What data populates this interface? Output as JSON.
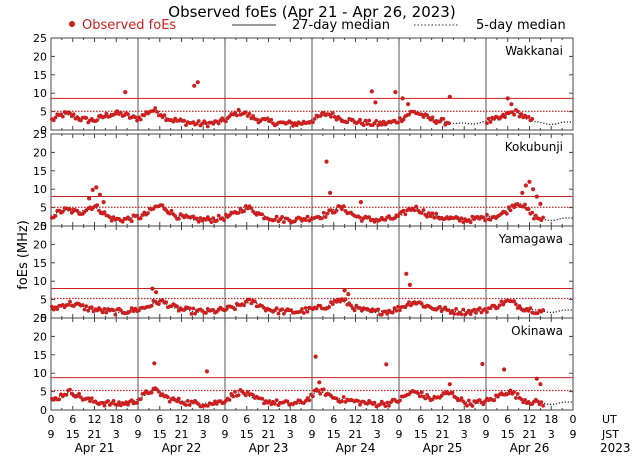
{
  "chart_data": {
    "type": "scatter",
    "title": "Observed foEs (Apr 21 - Apr 26, 2023)",
    "ylabel": "foEs (MHz)",
    "legend": [
      {
        "name": "Observed foEs",
        "color": "#cc1f1f",
        "style": "dot"
      },
      {
        "name": "27-day median",
        "color": "#333333",
        "style": "solid"
      },
      {
        "name": "5-day median",
        "color": "#333333",
        "style": "dotted"
      }
    ],
    "ylim": [
      0,
      25
    ],
    "yticks": [
      0,
      5,
      10,
      15,
      20,
      25
    ],
    "x_range_hours": [
      0,
      144
    ],
    "x_ticks_hours": [
      0,
      6,
      12,
      18,
      24,
      30,
      36,
      42,
      48,
      54,
      60,
      66,
      72,
      78,
      84,
      90,
      96,
      102,
      108,
      114,
      120,
      126,
      132,
      138,
      144
    ],
    "ut_labels": [
      "0",
      "6",
      "12",
      "18",
      "0",
      "6",
      "12",
      "18",
      "0",
      "6",
      "12",
      "18",
      "0",
      "6",
      "12",
      "18",
      "0",
      "6",
      "12",
      "18",
      "0",
      "6",
      "12",
      "18",
      "0"
    ],
    "jst_labels": [
      "9",
      "15",
      "21",
      "3",
      "9",
      "15",
      "21",
      "3",
      "9",
      "15",
      "21",
      "3",
      "9",
      "15",
      "21",
      "3",
      "9",
      "15",
      "21",
      "3",
      "9",
      "15",
      "21",
      "3",
      "9"
    ],
    "ut_axis_label": "UT",
    "jst_axis_label": "JST",
    "days": [
      "Apr 21",
      "Apr 22",
      "Apr 23",
      "Apr 24",
      "Apr 25",
      "Apr 26"
    ],
    "year": "2023",
    "red_line_color": "#cc1f1f",
    "panels": [
      {
        "station": "Wakkanai",
        "median27": 8.6,
        "median5": 5.1,
        "spikes": [
          [
            20.5,
            10.3
          ],
          [
            39.5,
            12.0
          ],
          [
            40.5,
            13.0
          ],
          [
            88.5,
            10.5
          ],
          [
            89.5,
            7.5
          ],
          [
            95.0,
            10.3
          ],
          [
            97.0,
            8.6
          ],
          [
            98.5,
            7.0
          ],
          [
            110.0,
            9.0
          ],
          [
            126.0,
            8.6
          ],
          [
            127.0,
            7.0
          ]
        ],
        "bumps": [
          [
            4,
            1.5
          ],
          [
            16,
            2.0
          ],
          [
            20,
            2.0
          ],
          [
            28,
            2.5
          ],
          [
            52,
            2.0
          ],
          [
            76,
            1.5
          ],
          [
            100,
            2.0
          ],
          [
            128,
            2.0
          ]
        ],
        "gaps": [
          [
            110,
            120
          ],
          [
            133,
            144
          ]
        ]
      },
      {
        "station": "Kokubunji",
        "median27": 8.0,
        "median5": 5.1,
        "spikes": [
          [
            10.5,
            7.5
          ],
          [
            11.5,
            9.8
          ],
          [
            12.5,
            10.5
          ],
          [
            13.5,
            8.5
          ],
          [
            14.5,
            6.5
          ],
          [
            76.0,
            17.5
          ],
          [
            77.0,
            9.0
          ],
          [
            85.5,
            6.5
          ],
          [
            130.0,
            9.0
          ],
          [
            131.0,
            11.0
          ],
          [
            132.0,
            12.0
          ],
          [
            133.0,
            10.0
          ],
          [
            134.0,
            8.0
          ],
          [
            135.0,
            6.0
          ]
        ],
        "bumps": [
          [
            4,
            1.5
          ],
          [
            12,
            3.0
          ],
          [
            30,
            2.5
          ],
          [
            54,
            2.0
          ],
          [
            80,
            2.0
          ],
          [
            100,
            2.0
          ],
          [
            129,
            3.5
          ]
        ],
        "gaps": [
          [
            136,
            144
          ]
        ]
      },
      {
        "station": "Yamagawa",
        "median27": 8.0,
        "median5": 5.3,
        "spikes": [
          [
            28.0,
            8.0
          ],
          [
            29.0,
            7.0
          ],
          [
            81.0,
            7.5
          ],
          [
            82.0,
            6.5
          ],
          [
            98.0,
            12.0
          ],
          [
            99.0,
            9.0
          ]
        ],
        "bumps": [
          [
            5,
            1.0
          ],
          [
            30,
            1.5
          ],
          [
            55,
            1.5
          ],
          [
            80,
            2.0
          ],
          [
            100,
            1.5
          ],
          [
            126,
            1.5
          ]
        ],
        "gaps": [
          [
            136,
            144
          ]
        ]
      },
      {
        "station": "Okinawa",
        "median27": 8.8,
        "median5": 5.3,
        "spikes": [
          [
            28.5,
            12.7
          ],
          [
            43.0,
            10.5
          ],
          [
            73.0,
            14.5
          ],
          [
            74.0,
            7.5
          ],
          [
            92.5,
            12.4
          ],
          [
            110.0,
            7.0
          ],
          [
            119.0,
            12.5
          ],
          [
            125.0,
            11.0
          ],
          [
            134.0,
            8.5
          ],
          [
            135.0,
            7.0
          ]
        ],
        "bumps": [
          [
            5,
            2.0
          ],
          [
            28,
            2.5
          ],
          [
            52,
            2.0
          ],
          [
            74,
            2.5
          ],
          [
            100,
            2.0
          ],
          [
            110,
            2.5
          ],
          [
            126,
            2.0
          ]
        ],
        "gaps": [
          [
            136,
            144
          ]
        ]
      }
    ]
  }
}
